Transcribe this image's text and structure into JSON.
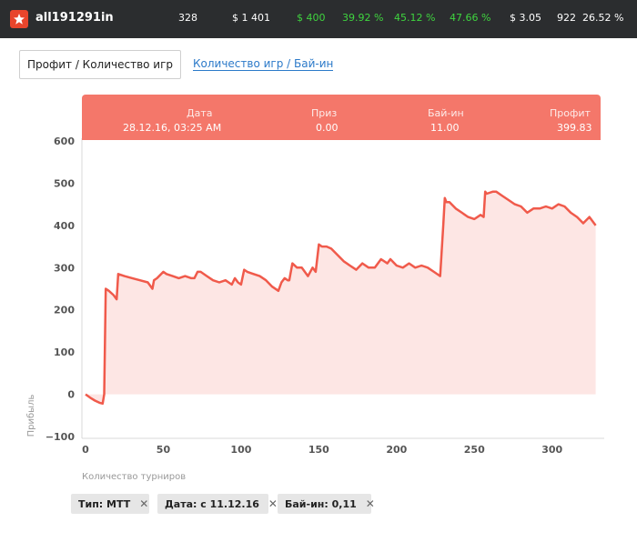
{
  "header": {
    "username": "all191291in",
    "stats": [
      {
        "text": "328",
        "color": "#ffffff"
      },
      {
        "text": "$ 1 401",
        "color": "#ffffff"
      },
      {
        "text": "$ 400",
        "color": "#3fd43f"
      },
      {
        "text": "39.92 %",
        "color": "#3fd43f"
      },
      {
        "text": "45.12 %",
        "color": "#3fd43f"
      },
      {
        "text": "47.66 %",
        "color": "#3fd43f"
      },
      {
        "text": "$ 3.05",
        "color": "#ffffff"
      },
      {
        "text": "922",
        "color": "#ffffff"
      },
      {
        "text": "26.52 %",
        "color": "#ffffff"
      }
    ]
  },
  "tabs": {
    "active": "Профит / Количество игр",
    "inactive": "Количество игр / Бай-ин"
  },
  "tooltip": {
    "date_label": "Дата",
    "date_value": "28.12.16, 03:25 AM",
    "prize_label": "Приз",
    "prize_value": "0.00",
    "buyin_label": "Бай-ин",
    "buyin_value": "11.00",
    "profit_label": "Профит",
    "profit_value": "399.83"
  },
  "filters": [
    {
      "label": "Тип: MTT"
    },
    {
      "label": "Дата: с 11.12.16"
    },
    {
      "label": "Бай-ин: 0,11"
    }
  ],
  "chart_data": {
    "type": "area",
    "xlabel": "Количество турниров",
    "ylabel": "Прибыль",
    "xlim": [
      0,
      330
    ],
    "ylim": [
      -100,
      600
    ],
    "xticks": [
      0,
      50,
      100,
      150,
      200,
      250,
      300
    ],
    "yticks": [
      600,
      500,
      400,
      300,
      200,
      100,
      0,
      -100
    ],
    "line_color": "#f05a4b",
    "fill_color": "#fde6e4",
    "series": [
      {
        "x": [
          0,
          3,
          6,
          9,
          11,
          12,
          13,
          15,
          18,
          20,
          21,
          25,
          30,
          35,
          40,
          43,
          44,
          46,
          50,
          52,
          56,
          60,
          64,
          68,
          70,
          72,
          74,
          78,
          82,
          86,
          90,
          94,
          96,
          98,
          100,
          102,
          104,
          108,
          112,
          116,
          120,
          124,
          126,
          128,
          130,
          131,
          133,
          136,
          139,
          143,
          146,
          148,
          150,
          152,
          155,
          158,
          162,
          166,
          170,
          174,
          178,
          182,
          186,
          190,
          194,
          196,
          200,
          204,
          208,
          212,
          216,
          220,
          224,
          228,
          230,
          231,
          232,
          234,
          238,
          242,
          246,
          250,
          254,
          256,
          257,
          258,
          262,
          264,
          268,
          272,
          276,
          280,
          284,
          288,
          292,
          296,
          300,
          304,
          308,
          312,
          316,
          320,
          324,
          328
        ],
        "y": [
          0,
          -8,
          -15,
          -20,
          -22,
          0,
          250,
          245,
          235,
          225,
          285,
          280,
          275,
          270,
          265,
          250,
          270,
          275,
          290,
          285,
          280,
          275,
          280,
          275,
          275,
          290,
          290,
          280,
          270,
          265,
          270,
          260,
          275,
          265,
          260,
          295,
          290,
          285,
          280,
          270,
          255,
          245,
          265,
          275,
          270,
          270,
          310,
          300,
          300,
          280,
          300,
          290,
          355,
          350,
          350,
          345,
          330,
          315,
          305,
          295,
          310,
          300,
          300,
          320,
          310,
          320,
          305,
          300,
          310,
          300,
          305,
          300,
          290,
          280,
          400,
          465,
          455,
          455,
          440,
          430,
          420,
          415,
          425,
          420,
          480,
          475,
          480,
          480,
          470,
          460,
          450,
          445,
          430,
          440,
          440,
          445,
          440,
          450,
          445,
          430,
          420,
          405,
          420,
          400
        ]
      }
    ]
  }
}
